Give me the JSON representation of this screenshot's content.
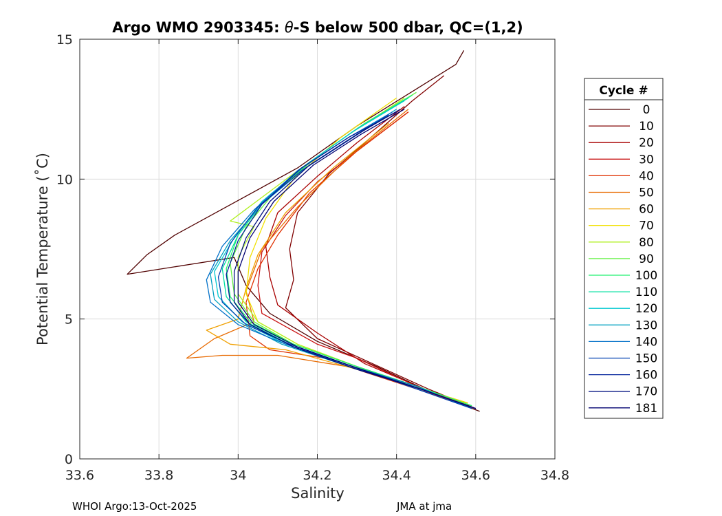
{
  "chart_data": {
    "type": "line",
    "title": "Argo WMO 2903345: θ-S below 500 dbar,  QC=(1,2)",
    "title_parts": {
      "prefix": "Argo WMO 2903345: ",
      "theta": "θ",
      "suffix": "-S below 500 dbar,  QC=(1,2)"
    },
    "xlabel": "Salinity",
    "ylabel": "Potential Temperature (˚C)",
    "xlim": [
      33.6,
      34.8
    ],
    "ylim": [
      0,
      15
    ],
    "xticks": [
      33.6,
      33.8,
      34,
      34.2,
      34.4,
      34.6,
      34.8
    ],
    "yticks": [
      0,
      5,
      10,
      15
    ],
    "xtick_labels": [
      "33.6",
      "33.8",
      "34",
      "34.2",
      "34.4",
      "34.6",
      "34.8"
    ],
    "ytick_labels": [
      "0",
      "5",
      "10",
      "15"
    ],
    "grid": true,
    "legend": {
      "title": "Cycle #",
      "placement": "right",
      "entries": [
        {
          "label": "0",
          "color": "#500000"
        },
        {
          "label": "10",
          "color": "#800000"
        },
        {
          "label": "20",
          "color": "#a80000"
        },
        {
          "label": "30",
          "color": "#c81010"
        },
        {
          "label": "40",
          "color": "#e03000"
        },
        {
          "label": "50",
          "color": "#e86a00"
        },
        {
          "label": "60",
          "color": "#f0a000"
        },
        {
          "label": "70",
          "color": "#f0e000"
        },
        {
          "label": "80",
          "color": "#b0f020"
        },
        {
          "label": "90",
          "color": "#60f040"
        },
        {
          "label": "100",
          "color": "#20f070"
        },
        {
          "label": "110",
          "color": "#00e0a0"
        },
        {
          "label": "120",
          "color": "#00c8d0"
        },
        {
          "label": "130",
          "color": "#00a0c0"
        },
        {
          "label": "140",
          "color": "#0070c8"
        },
        {
          "label": "150",
          "color": "#0040b0"
        },
        {
          "label": "160",
          "color": "#00209a"
        },
        {
          "label": "170",
          "color": "#001080"
        },
        {
          "label": "181",
          "color": "#000070"
        }
      ]
    },
    "series": [
      {
        "name": "cycle 0",
        "color": "#500000",
        "x": [
          34.61,
          34.5,
          34.35,
          34.2,
          34.08,
          34.02,
          33.99,
          33.72,
          33.77,
          33.84,
          34.15,
          34.3,
          34.55,
          34.57
        ],
        "y": [
          1.7,
          2.3,
          3.3,
          4.2,
          5.2,
          6.2,
          7.2,
          6.6,
          7.3,
          8.0,
          10.4,
          11.9,
          14.1,
          14.6
        ]
      },
      {
        "name": "cycle 10",
        "color": "#800000",
        "x": [
          34.6,
          34.48,
          34.34,
          34.2,
          34.12,
          34.14,
          34.13,
          34.15,
          34.23,
          34.32,
          34.44,
          34.52
        ],
        "y": [
          1.8,
          2.5,
          3.4,
          4.3,
          5.4,
          6.4,
          7.5,
          8.8,
          10.2,
          11.3,
          12.8,
          13.7
        ]
      },
      {
        "name": "cycle 20",
        "color": "#a80000",
        "x": [
          34.6,
          34.47,
          34.32,
          34.2,
          34.1,
          34.08,
          34.07,
          34.1,
          34.2,
          34.3,
          34.42
        ],
        "y": [
          1.8,
          2.5,
          3.4,
          4.5,
          5.5,
          6.5,
          7.6,
          8.8,
          10.1,
          11.3,
          12.6
        ]
      },
      {
        "name": "cycle 30",
        "color": "#c81010",
        "x": [
          34.6,
          34.45,
          34.3,
          34.2,
          34.06,
          34.05,
          34.06,
          34.12,
          34.2,
          34.3,
          34.43
        ],
        "y": [
          1.8,
          2.6,
          3.6,
          4.1,
          5.2,
          6.2,
          7.4,
          8.7,
          9.9,
          11.0,
          12.4
        ]
      },
      {
        "name": "cycle 40",
        "color": "#e03000",
        "x": [
          34.58,
          34.45,
          34.32,
          34.22,
          34.08,
          34.03,
          34.02,
          34.05,
          34.1,
          34.18,
          34.3,
          34.43
        ],
        "y": [
          1.9,
          2.5,
          3.1,
          3.6,
          3.9,
          4.4,
          5.6,
          6.8,
          8.0,
          9.5,
          11.0,
          12.4
        ]
      },
      {
        "name": "cycle 50",
        "color": "#e86a00",
        "x": [
          34.58,
          34.44,
          34.32,
          34.1,
          33.96,
          33.87,
          33.94,
          34.04,
          34.02,
          34.06,
          34.15,
          34.28,
          34.43
        ],
        "y": [
          2.0,
          2.6,
          3.2,
          3.7,
          3.7,
          3.6,
          4.3,
          4.9,
          6.0,
          7.5,
          9.0,
          10.8,
          12.5
        ]
      },
      {
        "name": "cycle 60",
        "color": "#f0a000",
        "x": [
          34.58,
          34.44,
          34.3,
          34.12,
          33.98,
          33.92,
          34.0,
          34.02,
          34.05,
          34.12,
          34.24,
          34.38
        ],
        "y": [
          2.0,
          2.6,
          3.2,
          3.9,
          4.1,
          4.6,
          5.0,
          6.1,
          7.3,
          8.8,
          10.4,
          12.0
        ]
      },
      {
        "name": "cycle 70",
        "color": "#f0e000",
        "x": [
          34.58,
          34.44,
          34.3,
          34.15,
          34.05,
          34.02,
          34.03,
          34.07,
          34.14,
          34.26,
          34.4
        ],
        "y": [
          2.0,
          2.6,
          3.3,
          4.1,
          4.9,
          5.9,
          7.2,
          8.6,
          10.0,
          11.5,
          12.9
        ]
      },
      {
        "name": "cycle 80",
        "color": "#b0f020",
        "x": [
          34.59,
          34.45,
          34.3,
          34.15,
          34.05,
          34.0,
          34.0,
          34.04,
          33.98,
          34.15,
          34.28,
          34.42
        ],
        "y": [
          1.9,
          2.6,
          3.3,
          4.1,
          4.9,
          5.9,
          7.2,
          8.3,
          8.5,
          10.3,
          11.6,
          12.9
        ]
      },
      {
        "name": "cycle 90",
        "color": "#60f040",
        "x": [
          34.59,
          34.45,
          34.3,
          34.14,
          34.04,
          33.99,
          33.98,
          34.02,
          34.09,
          34.2,
          34.32,
          34.45
        ],
        "y": [
          1.9,
          2.6,
          3.3,
          4.1,
          4.9,
          5.9,
          7.0,
          8.3,
          9.5,
          10.8,
          12.0,
          13.1
        ]
      },
      {
        "name": "cycle 100",
        "color": "#20f070",
        "x": [
          34.59,
          34.45,
          34.3,
          34.14,
          34.03,
          33.98,
          33.97,
          34.0,
          34.07,
          34.18,
          34.3,
          34.44
        ],
        "y": [
          1.9,
          2.6,
          3.3,
          4.1,
          4.9,
          5.8,
          6.8,
          8.0,
          9.3,
          10.6,
          11.8,
          13.0
        ]
      },
      {
        "name": "cycle 110",
        "color": "#00e0a0",
        "x": [
          34.58,
          34.44,
          34.29,
          34.13,
          34.02,
          33.97,
          33.96,
          34.0,
          34.07,
          34.18,
          34.3,
          34.43
        ],
        "y": [
          1.9,
          2.6,
          3.3,
          4.1,
          4.9,
          5.8,
          6.8,
          8.0,
          9.3,
          10.6,
          11.8,
          12.9
        ]
      },
      {
        "name": "cycle 120",
        "color": "#00c8d0",
        "x": [
          34.58,
          34.44,
          34.28,
          34.12,
          34.01,
          33.95,
          33.94,
          33.99,
          34.06,
          34.17,
          34.29,
          34.42
        ],
        "y": [
          1.9,
          2.6,
          3.3,
          4.1,
          4.9,
          5.8,
          6.7,
          7.9,
          9.2,
          10.5,
          11.7,
          12.8
        ]
      },
      {
        "name": "cycle 130",
        "color": "#00a0c0",
        "x": [
          34.58,
          34.44,
          34.28,
          34.11,
          34.0,
          33.94,
          33.93,
          33.98,
          34.06,
          34.17,
          34.29,
          34.4
        ],
        "y": [
          1.9,
          2.6,
          3.3,
          4.1,
          4.9,
          5.7,
          6.6,
          7.8,
          9.1,
          10.4,
          11.5,
          12.5
        ]
      },
      {
        "name": "cycle 140",
        "color": "#0070c8",
        "x": [
          34.59,
          34.45,
          34.29,
          34.12,
          34.0,
          33.93,
          33.92,
          33.96,
          34.04,
          34.15,
          34.28,
          34.39
        ],
        "y": [
          1.8,
          2.6,
          3.3,
          4.1,
          4.8,
          5.6,
          6.4,
          7.6,
          8.9,
          10.3,
          11.5,
          12.4
        ]
      },
      {
        "name": "cycle 150",
        "color": "#0040b0",
        "x": [
          34.59,
          34.45,
          34.29,
          34.13,
          34.02,
          33.96,
          33.95,
          33.98,
          34.05,
          34.16,
          34.28,
          34.38
        ],
        "y": [
          1.8,
          2.5,
          3.3,
          4.1,
          4.8,
          5.6,
          6.5,
          7.7,
          9.0,
          10.3,
          11.4,
          12.3
        ]
      },
      {
        "name": "cycle 160",
        "color": "#00209a",
        "x": [
          34.6,
          34.46,
          34.3,
          34.14,
          34.03,
          33.98,
          33.97,
          34.0,
          34.06,
          34.16,
          34.28,
          34.4
        ],
        "y": [
          1.8,
          2.5,
          3.2,
          4.0,
          4.8,
          5.6,
          6.6,
          7.8,
          9.1,
          10.4,
          11.5,
          12.4
        ]
      },
      {
        "name": "cycle 170",
        "color": "#001080",
        "x": [
          34.6,
          34.46,
          34.3,
          34.14,
          34.03,
          33.99,
          33.99,
          34.02,
          34.08,
          34.18,
          34.3,
          34.41
        ],
        "y": [
          1.8,
          2.5,
          3.2,
          4.0,
          4.8,
          5.6,
          6.7,
          7.9,
          9.2,
          10.5,
          11.6,
          12.5
        ]
      },
      {
        "name": "cycle 181",
        "color": "#000070",
        "x": [
          34.6,
          34.46,
          34.31,
          34.15,
          34.04,
          34.0,
          34.0,
          34.03,
          34.09,
          34.19,
          34.31,
          34.42
        ],
        "y": [
          1.8,
          2.5,
          3.2,
          4.0,
          4.8,
          5.6,
          6.7,
          7.9,
          9.2,
          10.5,
          11.6,
          12.5
        ]
      }
    ]
  },
  "footer": {
    "left": "WHOI Argo:13-Oct-2025",
    "right": "JMA at jma"
  }
}
